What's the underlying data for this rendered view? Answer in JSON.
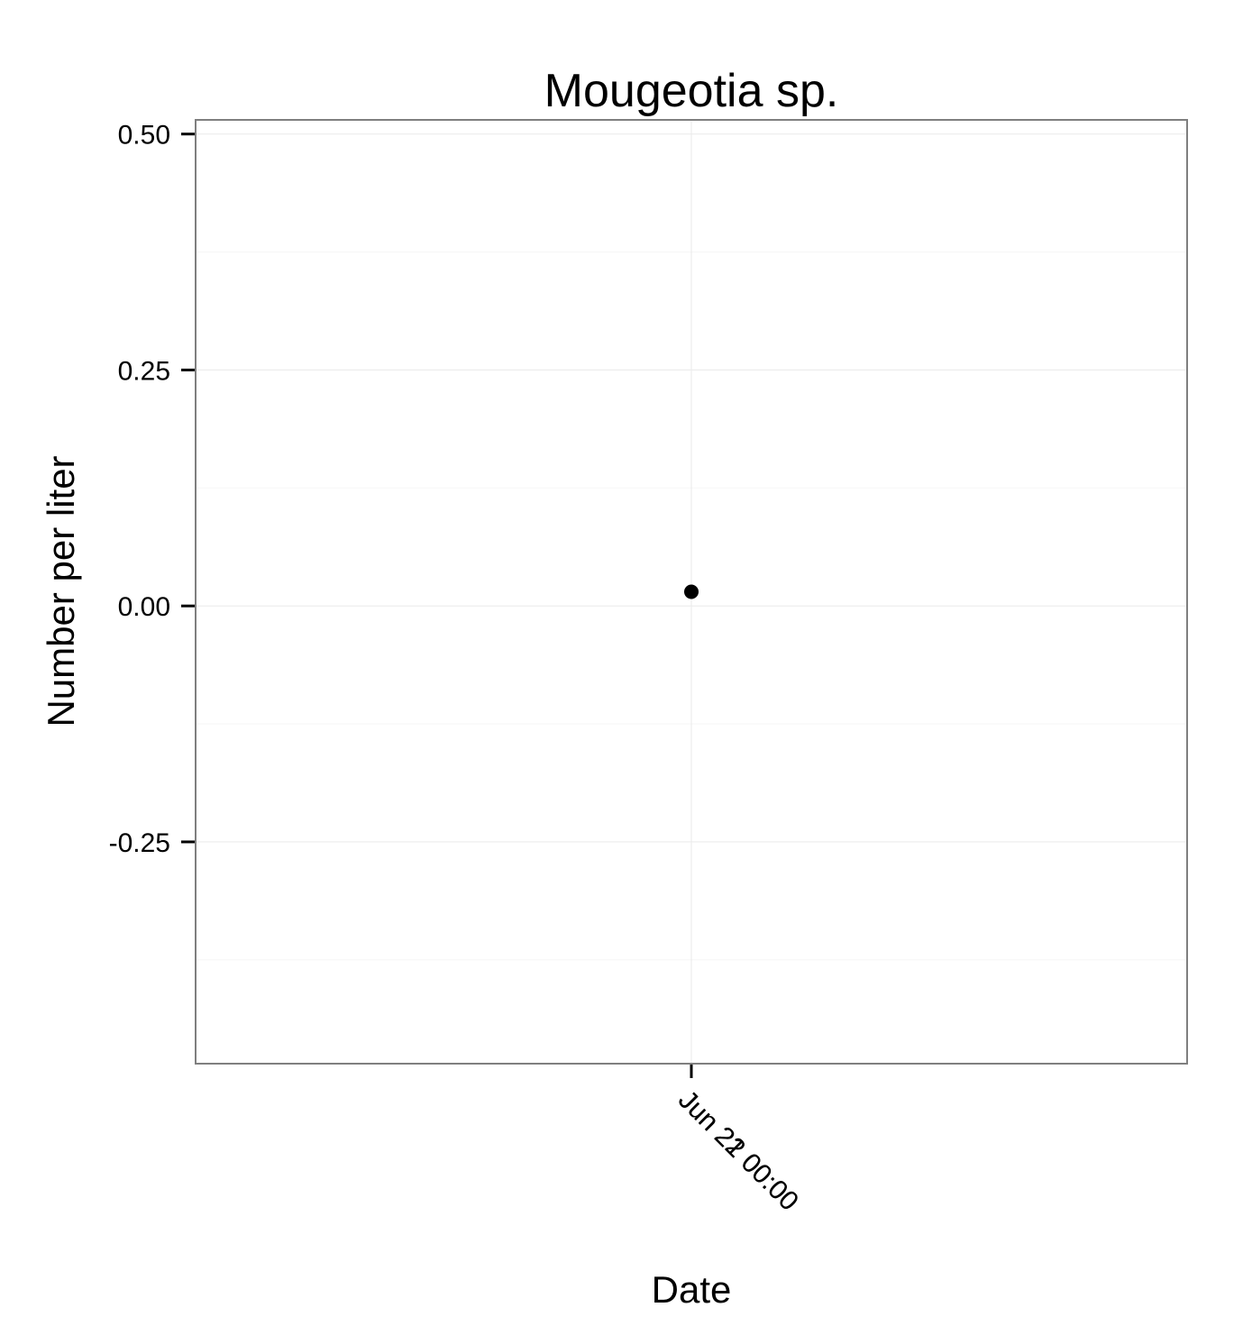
{
  "chart_data": {
    "type": "scatter",
    "title": "Mougeotia sp.",
    "xlabel": "Date",
    "ylabel": "Number per liter",
    "x_tick_labels": [
      "Jun 21 00:00",
      "Jun 22 00:00"
    ],
    "y_ticks": [
      0.5,
      0.25,
      0.0,
      -0.25
    ],
    "y_tick_labels": [
      "0.50",
      "0.25",
      "0.00",
      "-0.25"
    ],
    "ylim": [
      -0.485,
      0.515
    ],
    "grid": true,
    "series": [
      {
        "x": [
          "Jun 21 00:00"
        ],
        "y": [
          0.015
        ]
      }
    ],
    "colors": {
      "point": "#000000",
      "frame": "#7f7f7f",
      "grid": "#ececec"
    }
  }
}
